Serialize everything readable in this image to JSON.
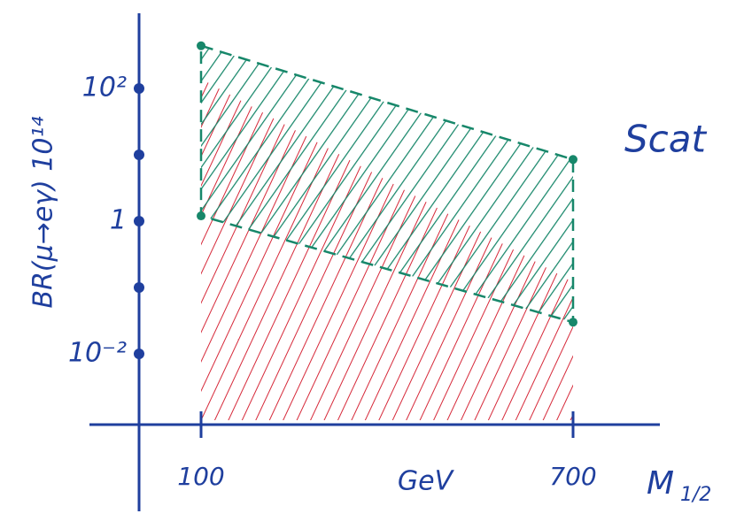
{
  "chart_data": {
    "type": "area",
    "y_label": "BR(μ→eγ) 10¹⁴",
    "x_label": "M",
    "x_label_sub": "1/2",
    "x_unit": "GeV",
    "annotation": "Scat",
    "x": [
      100,
      700
    ],
    "series": [
      {
        "color": "#d62839",
        "upper": [
          140,
          0.12
        ]
      },
      {
        "color": "#17876a",
        "upper": [
          440,
          8.5
        ],
        "lower": [
          1.2,
          0.03
        ]
      }
    ],
    "xlim": [
      -80,
      840
    ],
    "xticks": [
      100,
      700
    ],
    "ylim": [
      0.001,
      1000
    ],
    "log_y": true,
    "yticks": [
      {
        "value": 100,
        "label": "10²"
      },
      {
        "value": 1,
        "label": "1"
      },
      {
        "value": 0.01,
        "label": "10⁻²"
      }
    ],
    "yminor": [
      10,
      0.1
    ],
    "axis_color": "#1f3f9e"
  }
}
